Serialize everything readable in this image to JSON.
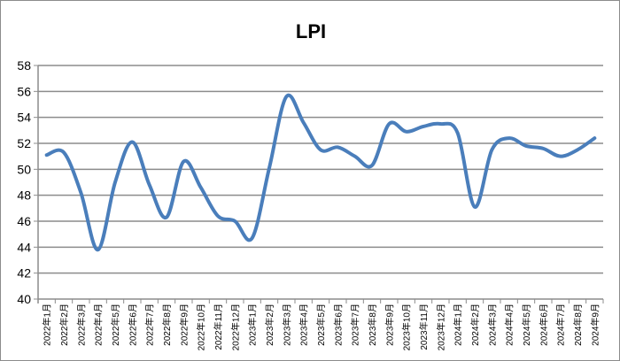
{
  "chart_data": {
    "type": "line",
    "title": "LPI",
    "xlabel": "",
    "ylabel": "",
    "ylim": [
      40,
      58
    ],
    "yticks": [
      40,
      42,
      44,
      46,
      48,
      50,
      52,
      54,
      56,
      58
    ],
    "grid": true,
    "smooth": true,
    "legend": "none",
    "line_color": "#4a7ebb",
    "categories": [
      "2022年1月",
      "2022年2月",
      "2022年3月",
      "2022年4月",
      "2022年5月",
      "2022年6月",
      "2022年7月",
      "2022年8月",
      "2022年9月",
      "2022年10月",
      "2022年11月",
      "2022年12月",
      "2023年1月",
      "2023年2月",
      "2023年3月",
      "2023年4月",
      "2023年5月",
      "2023年6月",
      "2023年7月",
      "2023年8月",
      "2023年9月",
      "2023年10月",
      "2023年11月",
      "2023年12月",
      "2024年1月",
      "2024年2月",
      "2024年3月",
      "2024年4月",
      "2024年5月",
      "2024年6月",
      "2024年7月",
      "2024年8月",
      "2024年9月"
    ],
    "series": [
      {
        "values": [
          51.1,
          51.3,
          48.2,
          43.8,
          49.0,
          52.1,
          48.8,
          46.3,
          50.6,
          48.6,
          46.4,
          46.0,
          44.7,
          50.1,
          55.6,
          53.6,
          51.5,
          51.7,
          51.0,
          50.3,
          53.5,
          52.9,
          53.3,
          53.5,
          52.8,
          47.1,
          51.5,
          52.4,
          51.8,
          51.6,
          51.0,
          51.5,
          52.4
        ]
      }
    ]
  }
}
